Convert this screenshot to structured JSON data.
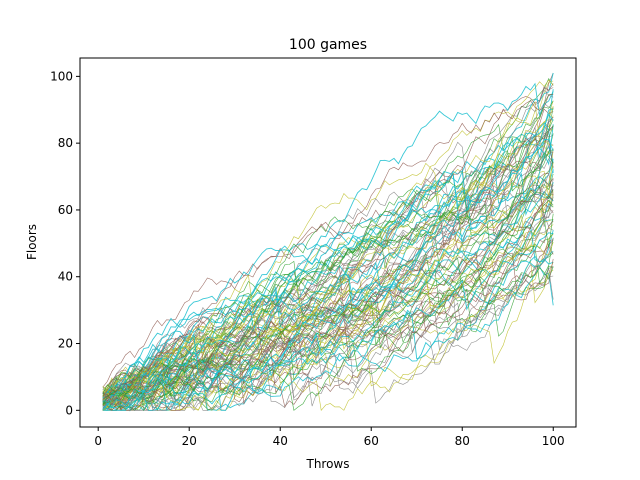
{
  "chart_data": {
    "type": "line",
    "title": "100 games",
    "xlabel": "Throws",
    "ylabel": "Floors",
    "xlim": [
      -4,
      105
    ],
    "ylim": [
      -5,
      105.5
    ],
    "xticks": [
      0,
      20,
      40,
      60,
      80,
      100
    ],
    "yticks": [
      0,
      20,
      40,
      60,
      80,
      100
    ],
    "grid": false,
    "legend": "none",
    "n_series": 100,
    "throws_per_game": 100,
    "colors": {
      "primary": "#17becf",
      "secondary": "#7f7f7f",
      "tertiary": "#bcbd22",
      "accent": "#8c564b",
      "outline": "#2ca02c"
    },
    "final_floor_range": [
      41,
      101
    ],
    "series_endpoints_sample": [
      {
        "final": 101
      },
      {
        "final": 99
      },
      {
        "final": 97
      },
      {
        "final": 95
      },
      {
        "final": 93
      },
      {
        "final": 91
      },
      {
        "final": 89
      },
      {
        "final": 87
      },
      {
        "final": 85
      },
      {
        "final": 83
      },
      {
        "final": 81
      },
      {
        "final": 79
      },
      {
        "final": 77
      },
      {
        "final": 75
      },
      {
        "final": 73
      },
      {
        "final": 71
      },
      {
        "final": 69
      },
      {
        "final": 67
      },
      {
        "final": 65
      },
      {
        "final": 63
      },
      {
        "final": 61
      },
      {
        "final": 59
      },
      {
        "final": 57
      },
      {
        "final": 55
      },
      {
        "final": 53
      },
      {
        "final": 51
      },
      {
        "final": 49
      },
      {
        "final": 47
      },
      {
        "final": 45
      },
      {
        "final": 43
      },
      {
        "final": 41
      }
    ]
  }
}
